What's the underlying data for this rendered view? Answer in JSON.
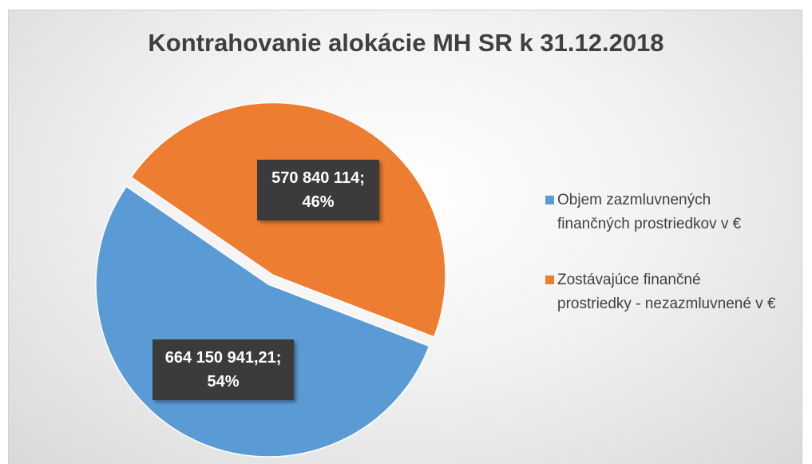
{
  "chart_data": {
    "type": "pie",
    "title": "Kontrahovanie alokácie MH SR k 31.12.2018",
    "categories": [
      "Objem zazmluvnených finančných prostriedkov v €",
      "Zostávajúce finančné prostriedky - nezazmluvnené  v €"
    ],
    "values": [
      664150941.21,
      570840114
    ],
    "value_labels": [
      "664 150 941,21; 54%",
      "570 840 114; 46%"
    ],
    "colors": [
      "#5b9bd5",
      "#ed7d31"
    ],
    "legend": "right"
  }
}
